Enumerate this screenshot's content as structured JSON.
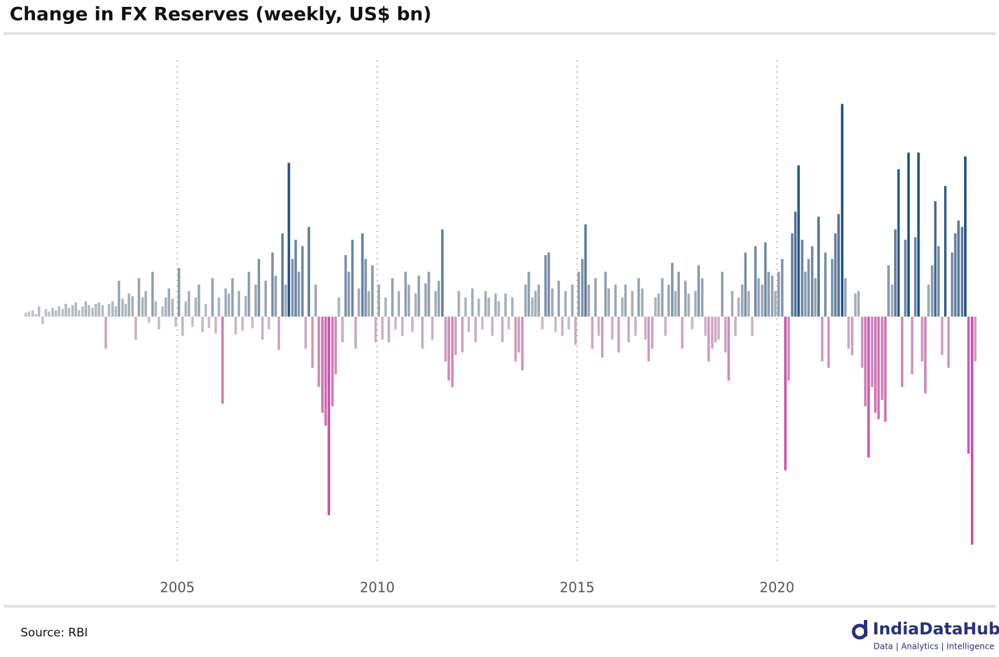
{
  "chart_data": {
    "type": "bar",
    "title": "Change in FX Reserves (weekly, US$ bn)",
    "x": [
      2001.21,
      2001.29,
      2001.38,
      2001.46,
      2001.54,
      2001.63,
      2001.71,
      2001.79,
      2001.88,
      2001.96,
      2002.04,
      2002.13,
      2002.21,
      2002.29,
      2002.38,
      2002.46,
      2002.54,
      2002.63,
      2002.71,
      2002.79,
      2002.88,
      2002.96,
      2003.04,
      2003.13,
      2003.21,
      2003.29,
      2003.38,
      2003.46,
      2003.54,
      2003.63,
      2003.71,
      2003.79,
      2003.88,
      2003.96,
      2004.04,
      2004.13,
      2004.21,
      2004.29,
      2004.38,
      2004.46,
      2004.54,
      2004.63,
      2004.71,
      2004.79,
      2004.88,
      2004.96,
      2005.04,
      2005.13,
      2005.21,
      2005.29,
      2005.38,
      2005.46,
      2005.54,
      2005.63,
      2005.71,
      2005.79,
      2005.88,
      2005.96,
      2006.04,
      2006.13,
      2006.21,
      2006.29,
      2006.38,
      2006.46,
      2006.54,
      2006.63,
      2006.71,
      2006.79,
      2006.88,
      2006.96,
      2007.04,
      2007.13,
      2007.21,
      2007.29,
      2007.38,
      2007.46,
      2007.54,
      2007.63,
      2007.71,
      2007.79,
      2007.88,
      2007.96,
      2008.04,
      2008.13,
      2008.21,
      2008.29,
      2008.38,
      2008.46,
      2008.54,
      2008.63,
      2008.71,
      2008.79,
      2008.88,
      2008.96,
      2009.04,
      2009.13,
      2009.21,
      2009.29,
      2009.38,
      2009.46,
      2009.54,
      2009.63,
      2009.71,
      2009.79,
      2009.88,
      2009.96,
      2010.04,
      2010.13,
      2010.21,
      2010.29,
      2010.38,
      2010.46,
      2010.54,
      2010.63,
      2010.71,
      2010.79,
      2010.88,
      2010.96,
      2011.04,
      2011.13,
      2011.21,
      2011.29,
      2011.38,
      2011.46,
      2011.54,
      2011.63,
      2011.71,
      2011.79,
      2011.88,
      2011.96,
      2012.04,
      2012.13,
      2012.21,
      2012.29,
      2012.38,
      2012.46,
      2012.54,
      2012.63,
      2012.71,
      2012.79,
      2012.88,
      2012.96,
      2013.04,
      2013.13,
      2013.21,
      2013.29,
      2013.38,
      2013.46,
      2013.54,
      2013.63,
      2013.71,
      2013.79,
      2013.88,
      2013.96,
      2014.04,
      2014.13,
      2014.21,
      2014.29,
      2014.38,
      2014.46,
      2014.54,
      2014.63,
      2014.71,
      2014.79,
      2014.88,
      2014.96,
      2015.04,
      2015.13,
      2015.21,
      2015.29,
      2015.38,
      2015.46,
      2015.54,
      2015.63,
      2015.71,
      2015.79,
      2015.88,
      2015.96,
      2016.04,
      2016.13,
      2016.21,
      2016.29,
      2016.38,
      2016.46,
      2016.54,
      2016.63,
      2016.71,
      2016.79,
      2016.88,
      2016.96,
      2017.04,
      2017.13,
      2017.21,
      2017.29,
      2017.38,
      2017.46,
      2017.54,
      2017.63,
      2017.71,
      2017.79,
      2017.88,
      2017.96,
      2018.04,
      2018.13,
      2018.21,
      2018.29,
      2018.38,
      2018.46,
      2018.54,
      2018.63,
      2018.71,
      2018.79,
      2018.88,
      2018.96,
      2019.04,
      2019.13,
      2019.21,
      2019.29,
      2019.38,
      2019.46,
      2019.54,
      2019.63,
      2019.71,
      2019.79,
      2019.88,
      2019.96,
      2020.04,
      2020.13,
      2020.21,
      2020.29,
      2020.38,
      2020.46,
      2020.54,
      2020.63,
      2020.71,
      2020.79,
      2020.88,
      2020.96,
      2021.04,
      2021.13,
      2021.21,
      2021.29,
      2021.38,
      2021.46,
      2021.54,
      2021.63,
      2021.71,
      2021.79,
      2021.88,
      2021.96,
      2022.04,
      2022.13,
      2022.21,
      2022.29,
      2022.38,
      2022.46,
      2022.54,
      2022.63,
      2022.71,
      2022.79,
      2022.88,
      2022.96,
      2023.04,
      2023.13,
      2023.21,
      2023.29,
      2023.38,
      2023.46,
      2023.54,
      2023.63,
      2023.71,
      2023.79,
      2023.88,
      2023.96,
      2024.04,
      2024.13,
      2024.21,
      2024.29,
      2024.38,
      2024.46,
      2024.54,
      2024.63,
      2024.71,
      2024.79,
      2024.88,
      2024.96
    ],
    "values": [
      0.3,
      0.4,
      0.5,
      0.2,
      0.8,
      -0.6,
      0.6,
      0.4,
      0.7,
      0.5,
      0.8,
      0.6,
      1.0,
      0.7,
      0.9,
      1.1,
      0.5,
      0.8,
      1.2,
      0.9,
      0.7,
      1.0,
      1.1,
      0.9,
      -2.5,
      1.0,
      1.2,
      0.8,
      2.8,
      1.4,
      1.0,
      1.8,
      1.6,
      -1.8,
      3.0,
      1.5,
      2.0,
      -0.5,
      3.5,
      1.2,
      -1.0,
      0.8,
      1.5,
      2.2,
      1.4,
      -0.8,
      3.8,
      -1.5,
      1.2,
      2.0,
      -0.8,
      1.5,
      2.5,
      -1.2,
      1.0,
      -0.9,
      3.0,
      -1.3,
      1.5,
      -6.8,
      2.2,
      1.8,
      3.0,
      -1.4,
      2.0,
      -1.1,
      1.6,
      3.5,
      -0.9,
      2.5,
      4.5,
      -1.8,
      2.8,
      -1.0,
      5.0,
      3.2,
      -2.6,
      6.5,
      2.5,
      12.0,
      4.5,
      6.0,
      3.5,
      5.5,
      -2.5,
      7.0,
      -4.0,
      2.5,
      -5.5,
      -7.5,
      -8.5,
      -15.5,
      -7.0,
      -4.5,
      1.5,
      -2.0,
      4.8,
      3.5,
      6.0,
      -2.5,
      2.2,
      6.5,
      4.5,
      2.0,
      4.0,
      -2.0,
      2.5,
      -1.8,
      1.5,
      -2.0,
      3.0,
      -1.0,
      2.0,
      -1.5,
      3.5,
      2.5,
      -1.2,
      1.8,
      3.2,
      -2.5,
      2.6,
      3.5,
      -1.8,
      2.0,
      2.8,
      6.8,
      -3.5,
      -5.0,
      -5.5,
      -3.0,
      2.0,
      -2.8,
      1.5,
      -1.2,
      2.2,
      -2.0,
      1.4,
      -1.0,
      2.0,
      1.5,
      -1.5,
      1.8,
      1.2,
      -2.0,
      1.8,
      -1.0,
      1.5,
      -3.5,
      -2.8,
      -4.2,
      2.5,
      3.5,
      1.5,
      2.0,
      2.5,
      -1.0,
      4.8,
      5.0,
      2.2,
      -1.2,
      2.8,
      -1.5,
      2.0,
      -1.0,
      2.5,
      -2.2,
      3.5,
      4.5,
      7.2,
      2.5,
      -2.5,
      3.0,
      -1.5,
      -3.2,
      3.5,
      2.2,
      -1.8,
      2.5,
      -2.8,
      1.5,
      2.5,
      -2.0,
      2.0,
      -1.5,
      3.0,
      2.2,
      -1.8,
      -3.5,
      -2.5,
      1.5,
      1.8,
      3.0,
      -1.5,
      2.5,
      4.2,
      2.0,
      3.5,
      -2.5,
      2.8,
      1.8,
      -1.0,
      2.0,
      4.0,
      3.0,
      -1.5,
      -3.5,
      -2.5,
      -2.0,
      -1.8,
      3.5,
      -2.8,
      -5.0,
      2.0,
      -1.5,
      1.5,
      2.5,
      5.0,
      2.0,
      -1.5,
      5.5,
      3.0,
      2.5,
      5.8,
      3.5,
      3.2,
      2.0,
      3.5,
      4.5,
      -12.0,
      -5.0,
      6.5,
      8.2,
      11.8,
      6.0,
      3.5,
      4.5,
      5.5,
      3.0,
      7.8,
      -3.5,
      5.0,
      -4.0,
      4.5,
      6.5,
      8.0,
      16.6,
      3.0,
      -2.5,
      -3.0,
      1.8,
      2.0,
      -4.0,
      -7.0,
      -11.0,
      -5.5,
      -7.5,
      -8.0,
      -6.5,
      -8.2,
      4.0,
      2.5,
      6.8,
      11.5,
      -5.5,
      6.0,
      12.8,
      -4.5,
      6.2,
      12.8,
      -3.5,
      -6.0,
      2.5,
      4.0,
      9.0,
      5.5,
      -3.0,
      10.2,
      -4.0,
      5.0,
      6.5,
      7.5,
      7.0,
      12.5,
      -10.7,
      -17.8,
      -3.5
    ],
    "xlim": [
      2000.65,
      2025.45
    ],
    "xticks": [
      2005,
      2010,
      2015,
      2020
    ],
    "ylim": [
      -19.5,
      20
    ],
    "grid": true,
    "neutral_color": "#c9c9c9",
    "positive_color": "#1f4e85",
    "negative_color": "#d44aaa"
  },
  "footer": {
    "source": "Source: RBI",
    "brand": "IndiaDataHub",
    "tagline": "Data | Analytics | Intelligence"
  }
}
